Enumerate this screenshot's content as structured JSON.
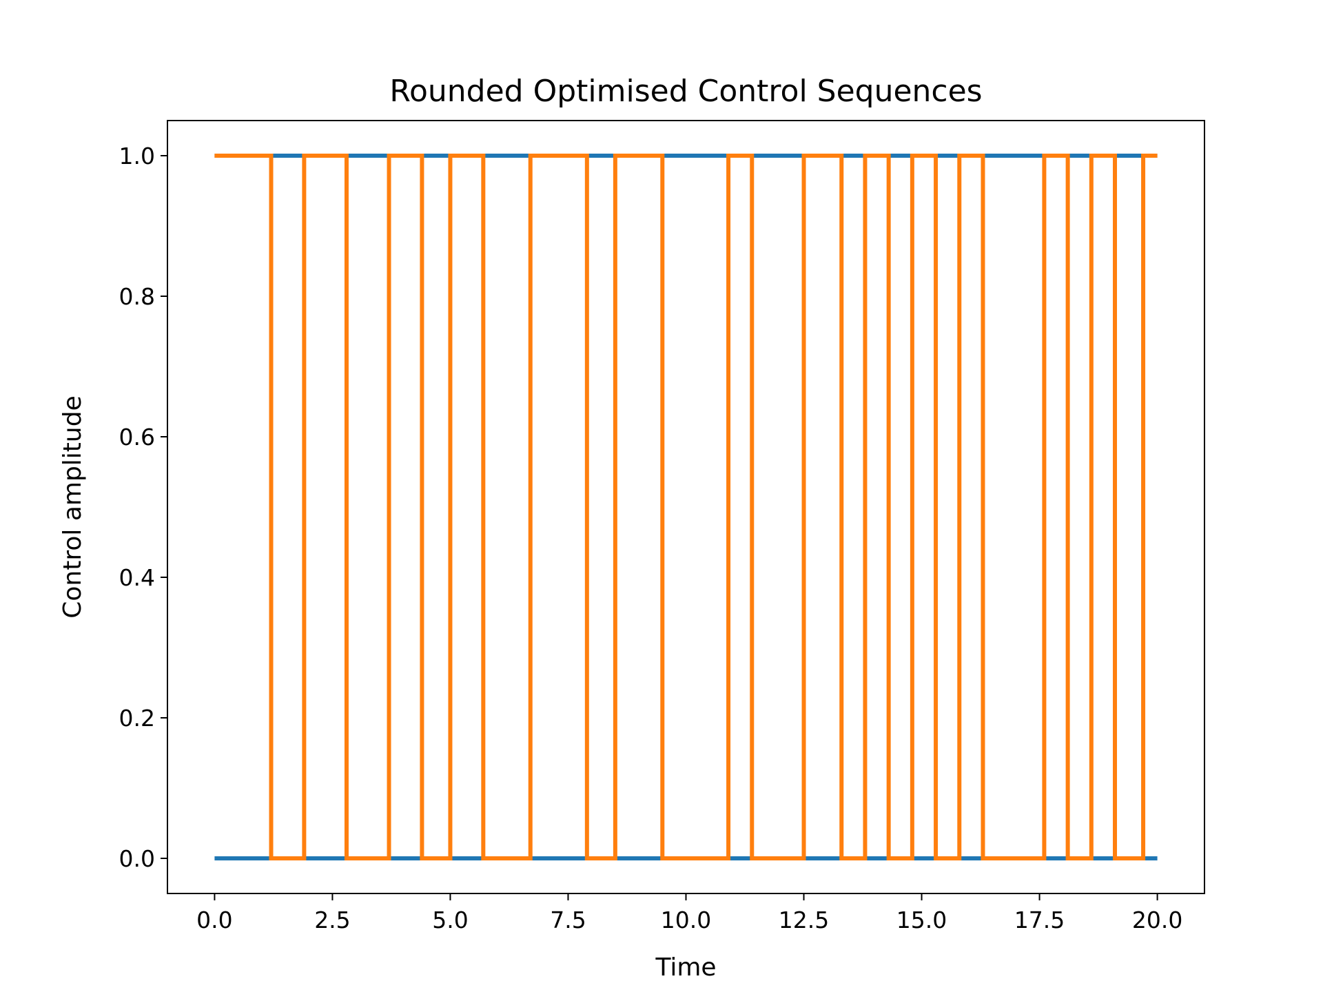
{
  "chart_data": {
    "type": "line",
    "title": "Rounded Optimised Control Sequences",
    "xlabel": "Time",
    "ylabel": "Control amplitude",
    "xlim": [
      -1.0,
      21.0
    ],
    "ylim": [
      -0.05,
      1.05
    ],
    "xticks": [
      "0.0",
      "2.5",
      "5.0",
      "7.5",
      "10.0",
      "12.5",
      "15.0",
      "17.5",
      "20.0"
    ],
    "yticks": [
      "0.0",
      "0.2",
      "0.4",
      "0.6",
      "0.8",
      "1.0"
    ],
    "grid": false,
    "legend": "none",
    "colors": {
      "series1": "#1f77b4",
      "series2": "#ff7f0e"
    },
    "series": [
      {
        "drawstyle": "steps-post",
        "color": "#1f77b4",
        "x": [
          0.0,
          20.0
        ],
        "y": [
          1,
          1
        ]
      },
      {
        "drawstyle": "steps-post",
        "color": "#1f77b4",
        "x": [
          0.0,
          20.0
        ],
        "y": [
          0,
          0
        ]
      },
      {
        "drawstyle": "steps-post",
        "color": "#ff7f0e",
        "x": [
          0.0,
          1.2,
          1.9,
          2.8,
          3.7,
          4.4,
          5.0,
          5.7,
          6.7,
          7.9,
          8.5,
          9.5,
          10.9,
          11.4,
          12.5,
          13.3,
          13.8,
          14.3,
          14.8,
          15.3,
          15.8,
          16.3,
          17.6,
          18.1,
          18.6,
          19.1,
          19.7,
          20.0
        ],
        "y": [
          1,
          0,
          1,
          0,
          1,
          0,
          1,
          0,
          1,
          0,
          1,
          0,
          1,
          0,
          1,
          0,
          1,
          0,
          1,
          0,
          1,
          0,
          1,
          0,
          1,
          0,
          1,
          1
        ]
      }
    ]
  }
}
